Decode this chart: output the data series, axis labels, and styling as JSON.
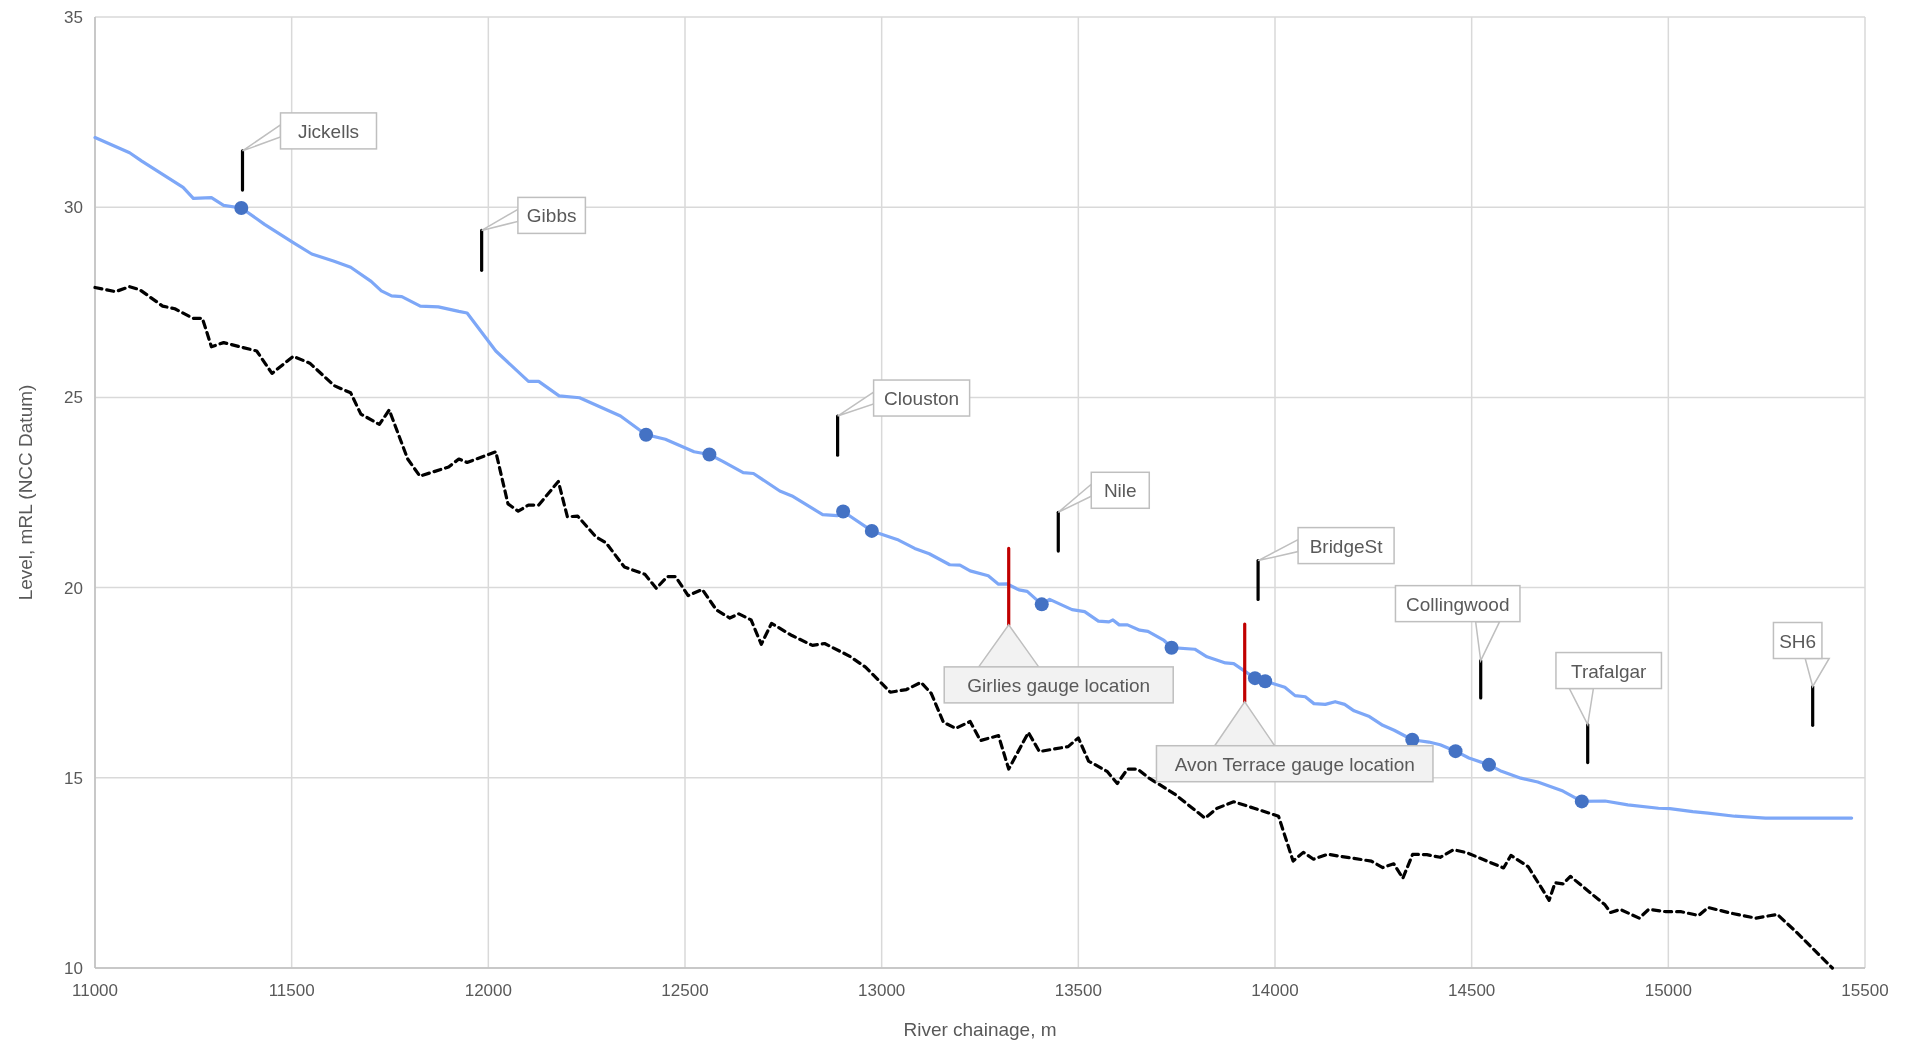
{
  "chart_data": {
    "type": "line",
    "xlabel": "River chainage, m",
    "ylabel": "Level, mRL (NCC Datum)",
    "xlim": [
      11000,
      15500
    ],
    "xticks": [
      11000,
      11500,
      12000,
      12500,
      13000,
      13500,
      14000,
      14500,
      15000,
      15500
    ],
    "ylim": [
      10,
      35
    ],
    "yticks": [
      10,
      15,
      20,
      25,
      30,
      35
    ],
    "grid": true,
    "series": [
      {
        "color": "#7da7f7",
        "line_style": "solid",
        "marker": "none",
        "x": [
          11000,
          11088,
          11119,
          11224,
          11250,
          11296,
          11327,
          11372,
          11431,
          11504,
          11551,
          11608,
          11650,
          11702,
          11728,
          11754,
          11780,
          11827,
          11873,
          11925,
          11946,
          12019,
          12102,
          12128,
          12180,
          12232,
          12336,
          12401,
          12450,
          12523,
          12562,
          12596,
          12648,
          12674,
          12741,
          12772,
          12824,
          12850,
          12887,
          12902,
          12975,
          13043,
          13084,
          13121,
          13173,
          13199,
          13225,
          13271,
          13297,
          13318,
          13349,
          13370,
          13407,
          13427,
          13484,
          13516,
          13551,
          13578,
          13588,
          13604,
          13625,
          13656,
          13677,
          13718,
          13737,
          13796,
          13827,
          13874,
          13895,
          13949,
          13975,
          14025,
          14051,
          14077,
          14099,
          14128,
          14153,
          14177,
          14201,
          14240,
          14274,
          14303,
          14349,
          14391,
          14420,
          14459,
          14493,
          14544,
          14576,
          14625,
          14668,
          14732,
          14780,
          14839,
          14897,
          14975,
          15004,
          15062,
          15101,
          15169,
          15247,
          15325,
          15466
        ],
        "values": [
          31.83,
          31.43,
          31.21,
          30.52,
          30.23,
          30.25,
          30.05,
          29.98,
          29.55,
          29.07,
          28.77,
          28.58,
          28.42,
          28.05,
          27.8,
          27.67,
          27.65,
          27.4,
          27.38,
          27.26,
          27.22,
          26.22,
          25.42,
          25.42,
          25.04,
          24.99,
          24.51,
          24.02,
          23.9,
          23.57,
          23.5,
          23.32,
          23.02,
          23.0,
          22.54,
          22.41,
          22.08,
          21.92,
          21.89,
          22.0,
          21.49,
          21.25,
          21.03,
          20.89,
          20.6,
          20.59,
          20.44,
          20.31,
          20.09,
          20.1,
          19.94,
          19.9,
          19.56,
          19.69,
          19.42,
          19.37,
          19.12,
          19.1,
          19.15,
          19.02,
          19.02,
          18.88,
          18.85,
          18.61,
          18.42,
          18.38,
          18.18,
          18.02,
          18.0,
          17.62,
          17.54,
          17.38,
          17.16,
          17.13,
          16.95,
          16.93,
          17.0,
          16.93,
          16.76,
          16.61,
          16.38,
          16.25,
          16.0,
          15.94,
          15.87,
          15.7,
          15.52,
          15.34,
          15.17,
          14.99,
          14.89,
          14.65,
          14.38,
          14.39,
          14.29,
          14.2,
          14.19,
          14.11,
          14.07,
          13.99,
          13.94,
          13.94,
          13.94
        ]
      },
      {
        "color": "#000000",
        "line_style": "dashed",
        "marker": "none",
        "x": [
          11000,
          11052,
          11088,
          11114,
          11172,
          11203,
          11249,
          11273,
          11296,
          11327,
          11411,
          11450,
          11504,
          11546,
          11608,
          11650,
          11676,
          11723,
          11748,
          11795,
          11826,
          11899,
          11925,
          11946,
          12019,
          12050,
          12076,
          12102,
          12128,
          12178,
          12201,
          12227,
          12273,
          12299,
          12346,
          12398,
          12427,
          12455,
          12476,
          12508,
          12544,
          12580,
          12614,
          12637,
          12668,
          12694,
          12720,
          12772,
          12824,
          12855,
          12918,
          12959,
          13022,
          13063,
          13100,
          13126,
          13157,
          13188,
          13225,
          13251,
          13297,
          13323,
          13373,
          13401,
          13474,
          13500,
          13526,
          13573,
          13599,
          13625,
          13651,
          13677,
          13744,
          13822,
          13853,
          13895,
          13947,
          14009,
          14046,
          14072,
          14098,
          14134,
          14163,
          14245,
          14274,
          14302,
          14325,
          14350,
          14386,
          14420,
          14454,
          14488,
          14581,
          14600,
          14644,
          14697,
          14712,
          14732,
          14751,
          14839,
          14853,
          14878,
          14926,
          14950,
          14994,
          15033,
          15077,
          15101,
          15160,
          15223,
          15277,
          15325,
          15417
        ],
        "values": [
          27.89,
          27.78,
          27.91,
          27.83,
          27.4,
          27.33,
          27.08,
          27.08,
          26.33,
          26.44,
          26.22,
          25.63,
          26.08,
          25.9,
          25.31,
          25.12,
          24.56,
          24.29,
          24.67,
          23.38,
          22.93,
          23.17,
          23.38,
          23.29,
          23.57,
          22.2,
          22.01,
          22.17,
          22.17,
          22.79,
          21.86,
          21.88,
          21.34,
          21.18,
          20.54,
          20.35,
          19.98,
          20.29,
          20.29,
          19.79,
          19.95,
          19.41,
          19.2,
          19.31,
          19.15,
          18.51,
          19.06,
          18.74,
          18.48,
          18.53,
          18.2,
          17.91,
          17.25,
          17.32,
          17.51,
          17.22,
          16.46,
          16.3,
          16.48,
          15.98,
          16.11,
          15.23,
          16.19,
          15.69,
          15.82,
          16.05,
          15.44,
          15.17,
          14.85,
          15.23,
          15.23,
          15.01,
          14.58,
          13.94,
          14.2,
          14.37,
          14.2,
          13.99,
          12.81,
          13.04,
          12.86,
          12.99,
          12.94,
          12.81,
          12.64,
          12.74,
          12.36,
          12.99,
          12.98,
          12.91,
          13.11,
          13.03,
          12.63,
          12.96,
          12.66,
          11.78,
          12.24,
          12.21,
          12.41,
          11.66,
          11.46,
          11.54,
          11.31,
          11.54,
          11.48,
          11.48,
          11.38,
          11.59,
          11.44,
          11.31,
          11.41,
          10.95,
          10.0
        ]
      },
      {
        "type": "scatter",
        "color": "#4472c4",
        "marker": "circle",
        "x": [
          11372,
          12401,
          12562,
          12902,
          12975,
          13407,
          13737,
          13949,
          13975,
          14349,
          14459,
          14544,
          14780
        ],
        "values": [
          29.98,
          24.02,
          23.5,
          22.0,
          21.49,
          19.56,
          18.42,
          17.62,
          17.54,
          16.0,
          15.7,
          15.34,
          14.38
        ]
      },
      {
        "type": "line",
        "color": "#000000",
        "line_style": "solid",
        "marker": "none",
        "x": [
          11375,
          11375
        ],
        "values": [
          31.48,
          30.45
        ]
      },
      {
        "type": "line",
        "color": "#000000",
        "line_style": "solid",
        "marker": "none",
        "x": [
          11983,
          11983
        ],
        "values": [
          29.39,
          28.34
        ]
      },
      {
        "type": "line",
        "color": "#000000",
        "line_style": "solid",
        "marker": "none",
        "x": [
          12888,
          12888
        ],
        "values": [
          24.51,
          23.48
        ]
      },
      {
        "type": "line",
        "color": "#000000",
        "line_style": "solid",
        "marker": "none",
        "x": [
          13449,
          13449
        ],
        "values": [
          21.98,
          20.96
        ]
      },
      {
        "type": "line",
        "color": "#000000",
        "line_style": "solid",
        "marker": "none",
        "x": [
          13957,
          13957
        ],
        "values": [
          20.71,
          19.69
        ]
      },
      {
        "type": "line",
        "color": "#000000",
        "line_style": "solid",
        "marker": "none",
        "x": [
          14523,
          14523
        ],
        "values": [
          18.08,
          17.1
        ]
      },
      {
        "type": "line",
        "color": "#000000",
        "line_style": "solid",
        "marker": "none",
        "x": [
          14795,
          14795
        ],
        "values": [
          16.4,
          15.4
        ]
      },
      {
        "type": "line",
        "color": "#000000",
        "line_style": "solid",
        "marker": "none",
        "x": [
          15367,
          15367
        ],
        "values": [
          17.4,
          16.38
        ]
      },
      {
        "type": "line",
        "color": "#c00000",
        "line_style": "solid",
        "marker": "none",
        "x": [
          13323,
          13323
        ],
        "values": [
          21.03,
          19.02
        ]
      },
      {
        "type": "line",
        "color": "#c00000",
        "line_style": "solid",
        "marker": "none",
        "x": [
          13923,
          13923
        ],
        "values": [
          19.04,
          17.0
        ]
      }
    ],
    "annotations": [
      {
        "text": "Jickells",
        "x": 11375,
        "y": 31.48
      },
      {
        "text": "Gibbs",
        "x": 11983,
        "y": 29.39
      },
      {
        "text": "Clouston",
        "x": 12888,
        "y": 24.51
      },
      {
        "text": "Nile",
        "x": 13449,
        "y": 21.98
      },
      {
        "text": "BridgeSt",
        "x": 13957,
        "y": 20.71
      },
      {
        "text": "Collingwood",
        "x": 14523,
        "y": 18.08
      },
      {
        "text": "Trafalgar",
        "x": 14795,
        "y": 16.4
      },
      {
        "text": "SH6",
        "x": 15367,
        "y": 17.4
      },
      {
        "text": "Girlies gauge location",
        "x": 13323,
        "y": 19.02
      },
      {
        "text": "Avon Terrace gauge location",
        "x": 13923,
        "y": 17.0
      }
    ]
  }
}
